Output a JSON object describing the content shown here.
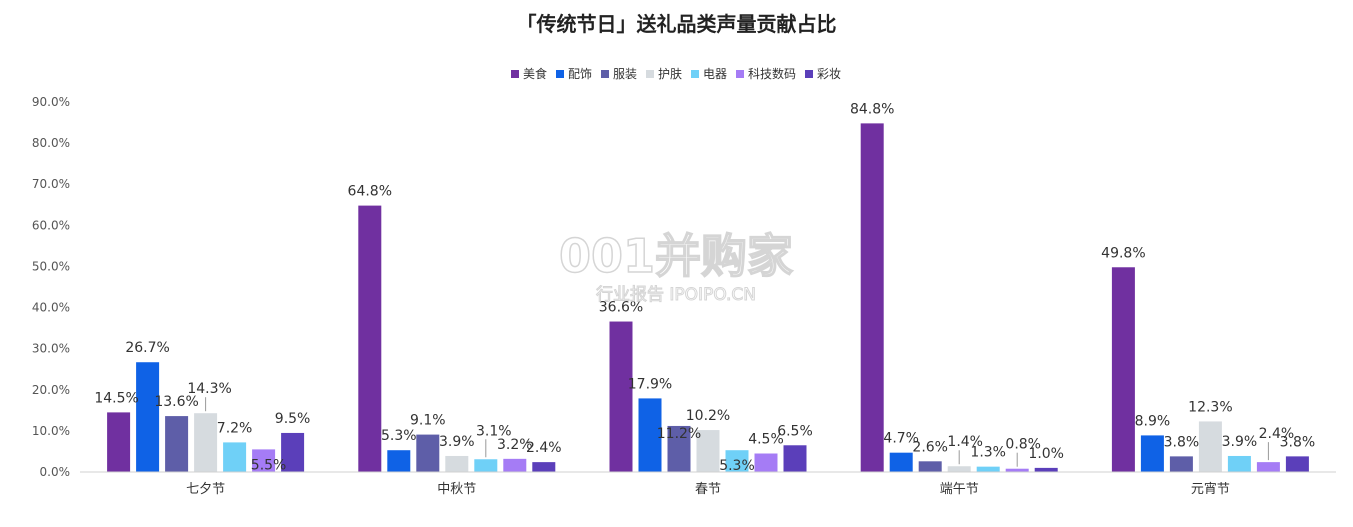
{
  "chart_data": {
    "type": "bar",
    "title": "「传统节日」送礼品类声量贡献占比",
    "categories": [
      "七夕节",
      "中秋节",
      "春节",
      "端午节",
      "元宵节"
    ],
    "series": [
      {
        "name": "美食",
        "color": "#7030a0",
        "values": [
          14.5,
          64.8,
          36.6,
          84.8,
          49.8
        ]
      },
      {
        "name": "配饰",
        "color": "#0f62e6",
        "values": [
          26.7,
          5.3,
          17.9,
          4.7,
          8.9
        ]
      },
      {
        "name": "服装",
        "color": "#5e5ea8",
        "values": [
          13.6,
          9.1,
          11.2,
          2.6,
          3.8
        ]
      },
      {
        "name": "护肤",
        "color": "#d6dbdf",
        "values": [
          14.3,
          3.9,
          10.2,
          1.4,
          12.3
        ]
      },
      {
        "name": "电器",
        "color": "#6fd0f7",
        "values": [
          7.2,
          3.1,
          5.3,
          1.3,
          3.9
        ]
      },
      {
        "name": "科技数码",
        "color": "#a57cf5",
        "values": [
          5.5,
          3.2,
          4.5,
          0.8,
          2.4
        ]
      },
      {
        "name": "彩妆",
        "color": "#5b3fba",
        "values": [
          9.5,
          2.4,
          6.5,
          1.0,
          3.8
        ]
      }
    ],
    "ylim": [
      0,
      90
    ],
    "yticks": [
      "0.0%",
      "10.0%",
      "20.0%",
      "30.0%",
      "40.0%",
      "50.0%",
      "60.0%",
      "70.0%",
      "80.0%",
      "90.0%"
    ],
    "data_labels": [
      [
        "14.5%",
        "26.7%",
        "13.6%",
        "14.3%",
        "7.2%",
        "5.5%",
        "9.5%"
      ],
      [
        "64.8%",
        "5.3%",
        "9.1%",
        "3.9%",
        "3.1%",
        "3.2%",
        "2.4%"
      ],
      [
        "36.6%",
        "17.9%",
        "11.2%",
        "10.2%",
        "5.3%",
        "4.5%",
        "6.5%"
      ],
      [
        "84.8%",
        "4.7%",
        "2.6%",
        "1.4%",
        "1.3%",
        "0.8%",
        "1.0%"
      ],
      [
        "49.8%",
        "8.9%",
        "3.8%",
        "12.3%",
        "3.9%",
        "2.4%",
        "3.8%"
      ]
    ],
    "legend_position": "top-center",
    "grid": false
  },
  "watermark": {
    "main": "001并购家",
    "sub": "行业报告 IPOIPO.CN"
  }
}
